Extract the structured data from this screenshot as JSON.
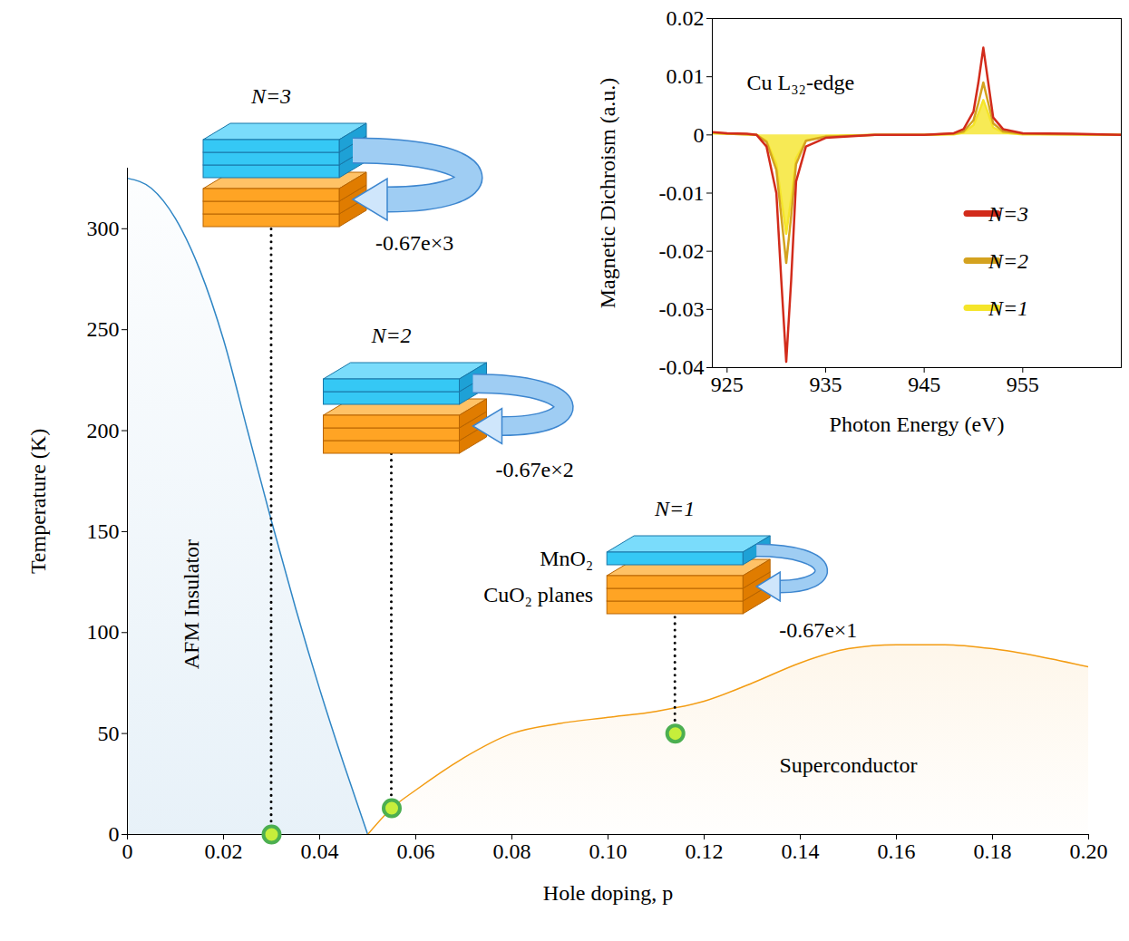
{
  "chart_data": [
    {
      "type": "area",
      "x_label": "Hole doping, p",
      "y_label": "Temperature (K)",
      "xlim": [
        0,
        0.2
      ],
      "ylim": [
        0,
        330
      ],
      "xticks": [
        0,
        0.02,
        0.04,
        0.06,
        0.08,
        {
          "value": 0.1,
          "label": "0.10"
        },
        0.12,
        0.14,
        0.16,
        0.18,
        {
          "value": 0.2,
          "label": "0.20"
        }
      ],
      "yticks": [
        0,
        50,
        100,
        150,
        200,
        250,
        300
      ],
      "grid": false,
      "series": [
        {
          "name": "AFM Insulator",
          "color": "#2f86c5",
          "x": [
            0,
            0.005,
            0.01,
            0.015,
            0.02,
            0.025,
            0.03,
            0.035,
            0.04,
            0.045,
            0.05
          ],
          "values": [
            325,
            320,
            305,
            280,
            245,
            200,
            155,
            112,
            72,
            35,
            0
          ],
          "label_x": 0.0133,
          "label_y": 114
        },
        {
          "name": "Superconductor",
          "color": "#f39c12",
          "x": [
            0.05,
            0.055,
            0.06,
            0.07,
            0.08,
            0.09,
            0.1,
            0.11,
            0.12,
            0.13,
            0.14,
            0.15,
            0.16,
            0.17,
            0.18,
            0.19,
            0.2
          ],
          "values": [
            0,
            13,
            22,
            38,
            50,
            55,
            58,
            61,
            66,
            75,
            85,
            92,
            94,
            94,
            92,
            88,
            83
          ],
          "label_x": 0.15,
          "label_y": 34
        }
      ],
      "points": {
        "type": "scatter",
        "x": [
          0.03,
          0.055,
          0.114
        ],
        "y": [
          0,
          13,
          50
        ],
        "color": "#c6ee3b",
        "marker": "circle"
      },
      "annotations": [
        {
          "text": "N=3",
          "charge": "-0.67e×3",
          "layers": 3,
          "point": 0
        },
        {
          "text": "N=2",
          "charge": "-0.67e×2",
          "layers": 2,
          "point": 1
        },
        {
          "text": "N=1",
          "charge": "-0.67e×1",
          "layers": 1,
          "point": 2,
          "top_label": "MnO₂",
          "bottom_label": "CuO₂ planes"
        }
      ]
    },
    {
      "type": "line",
      "x_label": "Photon Energy (eV)",
      "y_label": "Magnetic Dichroism (a.u.)",
      "xlim": [
        923.5,
        965
      ],
      "ylim": [
        -0.04,
        0.02
      ],
      "xticks": [
        925,
        935,
        945,
        955
      ],
      "yticks": [
        0.02,
        0.01,
        0,
        -0.01,
        -0.02,
        -0.03,
        -0.04
      ],
      "grid": false,
      "legend": "right",
      "x": [
        923.5,
        925,
        927,
        928,
        929,
        930,
        930.5,
        931,
        931.5,
        932,
        933,
        935,
        940,
        945,
        948,
        949,
        950,
        950.5,
        951,
        951.5,
        952,
        953,
        955,
        960,
        965
      ],
      "series": [
        {
          "name": "N=3",
          "color": "#d22b1b",
          "type": "line",
          "values": [
            0.0005,
            0.0003,
            0.0002,
            0,
            -0.002,
            -0.01,
            -0.025,
            -0.039,
            -0.025,
            -0.008,
            -0.002,
            -0.0005,
            0,
            0,
            0.0003,
            0.001,
            0.004,
            0.009,
            0.015,
            0.009,
            0.003,
            0.001,
            0.0003,
            0.0002,
            0
          ]
        },
        {
          "name": "N=2",
          "color": "#d4a21f",
          "type": "line",
          "values": [
            0.0004,
            0.0002,
            0.0001,
            0,
            -0.0012,
            -0.006,
            -0.014,
            -0.022,
            -0.014,
            -0.005,
            -0.001,
            -0.0003,
            0,
            0,
            0.0002,
            0.0006,
            0.0025,
            0.0055,
            0.009,
            0.0055,
            0.002,
            0.0006,
            0.0002,
            0.0001,
            0
          ]
        },
        {
          "name": "N=1",
          "color": "#f5e52a",
          "type": "area",
          "values": [
            0.0003,
            0.0002,
            0.0001,
            0,
            -0.001,
            -0.005,
            -0.011,
            -0.017,
            -0.011,
            -0.004,
            -0.001,
            -0.0002,
            0,
            0,
            0.0001,
            0.0004,
            0.0017,
            0.0037,
            0.006,
            0.0037,
            0.0013,
            0.0004,
            0.0001,
            0.0001,
            0
          ]
        }
      ],
      "annotations": [
        {
          "text": "Cu L₃₂-edge",
          "x": 927,
          "y": 0.009
        }
      ]
    }
  ]
}
